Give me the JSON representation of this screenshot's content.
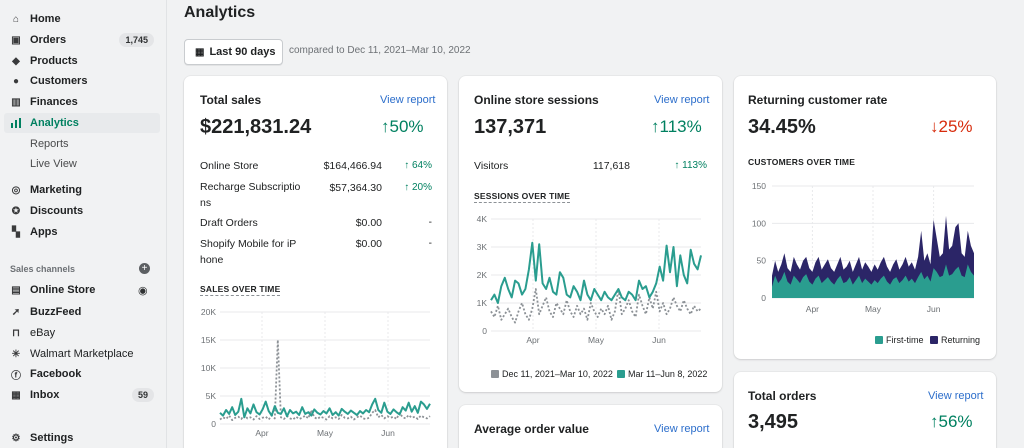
{
  "sidebar": {
    "items": [
      {
        "label": "Home",
        "icon": "home-icon"
      },
      {
        "label": "Orders",
        "icon": "orders-icon",
        "badge": "1,745"
      },
      {
        "label": "Products",
        "icon": "tag-icon"
      },
      {
        "label": "Customers",
        "icon": "person-icon"
      },
      {
        "label": "Finances",
        "icon": "bank-icon"
      },
      {
        "label": "Analytics",
        "icon": "bar-chart-icon"
      },
      {
        "label": "Marketing",
        "icon": "target-icon"
      },
      {
        "label": "Discounts",
        "icon": "discount-icon"
      },
      {
        "label": "Apps",
        "icon": "apps-icon"
      }
    ],
    "sub_items": [
      "Reports",
      "Live View"
    ],
    "sales_channels_label": "Sales channels",
    "channels": [
      {
        "label": "Online Store",
        "icon": "store-icon"
      },
      {
        "label": "BuzzFeed",
        "icon": "buzzfeed-icon"
      },
      {
        "label": "eBay",
        "icon": "bag-icon"
      },
      {
        "label": "Walmart Marketplace",
        "icon": "walmart-icon"
      },
      {
        "label": "Facebook",
        "icon": "facebook-icon"
      },
      {
        "label": "Inbox",
        "icon": "inbox-icon",
        "badge": "59"
      }
    ],
    "settings_label": "Settings"
  },
  "header": {
    "title": "Analytics",
    "date_range_label": "Last 90 days",
    "compare_text": "compared to Dec 11, 2021–Mar 10, 2022"
  },
  "colors": {
    "accent": "#008060",
    "teal": "#2a9d8f",
    "navy": "#2b2567",
    "gray_dotted": "#8c9196",
    "link": "#2c6ecb",
    "down": "#d72c0d"
  },
  "total_sales": {
    "title": "Total sales",
    "link": "View report",
    "value": "$221,831.24",
    "delta": "↑50%",
    "rows": [
      {
        "label": "Online Store",
        "value": "$164,466.94",
        "pct": "↑ 64%"
      },
      {
        "label": "Recharge Subscriptio\nns",
        "value": "$57,364.30",
        "pct": "↑ 20%"
      },
      {
        "label": "Draft Orders",
        "value": "$0.00",
        "pct": "-"
      },
      {
        "label": "Shopify Mobile for iP\nhone",
        "value": "$0.00",
        "pct": "-"
      }
    ],
    "chart_title": "SALES OVER TIME"
  },
  "sessions": {
    "title": "Online store sessions",
    "link": "View report",
    "value": "137,371",
    "delta": "↑113%",
    "visitors_label": "Visitors",
    "visitors_value": "117,618",
    "visitors_pct": "↑ 113%",
    "chart_title": "SESSIONS OVER TIME",
    "legend_prev": "Dec 11, 2021–Mar 10, 2022",
    "legend_curr": "Mar 11–Jun 8, 2022"
  },
  "returning": {
    "title": "Returning customer rate",
    "value": "34.45%",
    "delta": "↓25%",
    "chart_title": "CUSTOMERS OVER TIME",
    "legend_first": "First-time",
    "legend_returning": "Returning"
  },
  "aov": {
    "title": "Average order value",
    "link": "View report"
  },
  "orders": {
    "title": "Total orders",
    "link": "View report",
    "value": "3,495",
    "delta": "↑56%"
  },
  "chart_data": [
    {
      "type": "line",
      "title": "SALES OVER TIME",
      "ylim": [
        0,
        20000
      ],
      "y_ticks": [
        "0",
        "5K",
        "10K",
        "15K",
        "20K"
      ],
      "x_ticks": [
        "Apr",
        "May",
        "Jun"
      ],
      "series": [
        {
          "name": "Mar 11–Jun 8, 2022",
          "values": [
            2000,
            1500,
            2500,
            1800,
            3000,
            1600,
            2200,
            4500,
            1200,
            2800,
            1900,
            3500,
            2100,
            1700,
            2600,
            4000,
            2300,
            1500,
            3200,
            2000,
            1800,
            2800,
            1400,
            2500,
            1900,
            2200,
            1600,
            3000,
            1800,
            2100,
            1500,
            2600,
            2000,
            1700,
            2300,
            1900,
            2800,
            1600,
            2100,
            1500,
            2700,
            2200,
            1800,
            2400,
            2000,
            1600,
            2300,
            1900,
            2500,
            2100,
            3500,
            4500,
            2500,
            2000,
            3800,
            2200,
            1800,
            2600,
            2100,
            1700,
            3000,
            2400,
            3800,
            2200,
            3200,
            2000,
            4000,
            3500,
            2700,
            3600
          ]
        },
        {
          "name": "Dec 11, 2021–Mar 10, 2022",
          "values": [
            800,
            1200,
            900,
            1500,
            700,
            1100,
            1300,
            900,
            1600,
            1000,
            1200,
            800,
            1400,
            900,
            1100,
            1300,
            800,
            1500,
            1000,
            15000,
            1200,
            900,
            1400,
            1000,
            800,
            1300,
            900,
            1100,
            1500,
            1000,
            2500,
            1200,
            900,
            1300,
            1100,
            800,
            1400,
            1000,
            1200,
            900,
            1600,
            1100,
            1000,
            1300,
            800,
            1200,
            1500,
            1000,
            900,
            1100,
            2000,
            2500,
            1200,
            1600,
            1000,
            1400,
            1100,
            1300,
            900,
            2000,
            1200,
            1000,
            1600,
            1100,
            1300,
            900,
            1500,
            1200,
            1000,
            1400
          ]
        }
      ]
    },
    {
      "type": "line",
      "title": "SESSIONS OVER TIME",
      "ylim": [
        0,
        4000
      ],
      "y_ticks": [
        "0",
        "1K",
        "2K",
        "3K",
        "4K"
      ],
      "x_ticks": [
        "Apr",
        "May",
        "Jun"
      ],
      "series": [
        {
          "name": "Mar 11–Jun 8, 2022",
          "values": [
            1100,
            1300,
            1000,
            1600,
            1900,
            1500,
            1200,
            1800,
            1700,
            1300,
            1500,
            2200,
            3150,
            1800,
            3100,
            1700,
            1500,
            1900,
            1400,
            1300,
            2100,
            1900,
            1300,
            1200,
            1600,
            1400,
            1100,
            1800,
            1300,
            1100,
            1500,
            1300,
            1100,
            1400,
            1200,
            1100,
            1300,
            1500,
            1200,
            1100,
            1400,
            1300,
            1100,
            1800,
            1500,
            1600,
            1200,
            1400,
            1700,
            2300,
            1800,
            3050,
            2100,
            3000,
            1600,
            2700,
            2000,
            1700,
            2900,
            2400,
            2200,
            2700
          ]
        },
        {
          "name": "Dec 11, 2021–Mar 10, 2022",
          "values": [
            700,
            500,
            900,
            400,
            600,
            800,
            500,
            300,
            700,
            1000,
            600,
            400,
            800,
            1500,
            600,
            900,
            1200,
            700,
            500,
            1000,
            800,
            600,
            1100,
            700,
            500,
            900,
            600,
            800,
            400,
            1000,
            700,
            500,
            800,
            600,
            900,
            400,
            700,
            1500,
            600,
            800,
            1100,
            700,
            500,
            1300,
            900,
            600,
            1200,
            800,
            1400,
            700,
            1000,
            600,
            800,
            1200,
            900,
            700,
            1100,
            800,
            600,
            900,
            700,
            800
          ]
        }
      ]
    },
    {
      "type": "area",
      "title": "CUSTOMERS OVER TIME",
      "ylim": [
        0,
        150
      ],
      "y_ticks": [
        "0",
        "50",
        "100",
        "150"
      ],
      "x_ticks": [
        "Apr",
        "May",
        "Jun"
      ],
      "series": [
        {
          "name": "First-time",
          "values": [
            15,
            30,
            20,
            25,
            35,
            22,
            18,
            30,
            25,
            20,
            28,
            32,
            22,
            18,
            26,
            30,
            20,
            24,
            28,
            22,
            18,
            25,
            30,
            20,
            22,
            28,
            18,
            24,
            30,
            20,
            26,
            22,
            18,
            24,
            20,
            26,
            30,
            22,
            18,
            25,
            28,
            20,
            24,
            30,
            22,
            26,
            20,
            28,
            35,
            25,
            30,
            22,
            40,
            35,
            28,
            30,
            45,
            30,
            32,
            38,
            42,
            30,
            28,
            45,
            35,
            30
          ]
        },
        {
          "name": "Returning",
          "values": [
            30,
            50,
            35,
            45,
            60,
            40,
            35,
            55,
            45,
            38,
            50,
            55,
            40,
            35,
            48,
            55,
            38,
            45,
            52,
            40,
            35,
            45,
            55,
            38,
            42,
            50,
            35,
            45,
            55,
            38,
            48,
            42,
            35,
            45,
            38,
            48,
            55,
            42,
            35,
            45,
            52,
            38,
            45,
            55,
            42,
            48,
            38,
            55,
            90,
            50,
            60,
            45,
            105,
            80,
            55,
            60,
            110,
            65,
            70,
            95,
            100,
            60,
            55,
            90,
            70,
            60
          ]
        }
      ]
    }
  ]
}
